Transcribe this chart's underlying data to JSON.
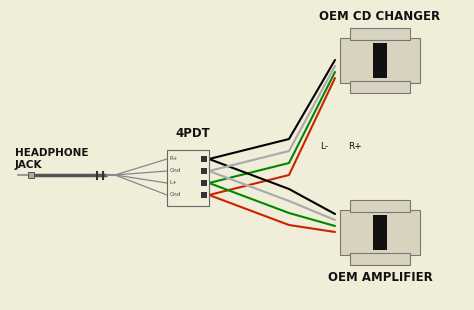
{
  "bg_color": "#f0edd8",
  "labels": {
    "headphone_jack_line1": "HEADPHONE",
    "headphone_jack_line2": "JACK",
    "pdt": "4PDT",
    "cd_changer": "OEM CD CHANGER",
    "amplifier": "OEM AMPLIFIER",
    "L_minus": "L-",
    "R_plus": "R+"
  },
  "pdt_labels": [
    "R+",
    "Gnd",
    "L+",
    "Gnd"
  ],
  "wire_colors": [
    "#000000",
    "#ffffff",
    "#008800",
    "#cc2200"
  ],
  "connector_color": "#d8d3be",
  "connector_border": "#777777",
  "black_rect": "#111111",
  "text_color": "#111111",
  "jack_cable_color": "#555555",
  "jack_tip_color": "#aaaaaa",
  "pdt_box_color": "#f0edd8",
  "pdt_wire_in_color": "#777777"
}
